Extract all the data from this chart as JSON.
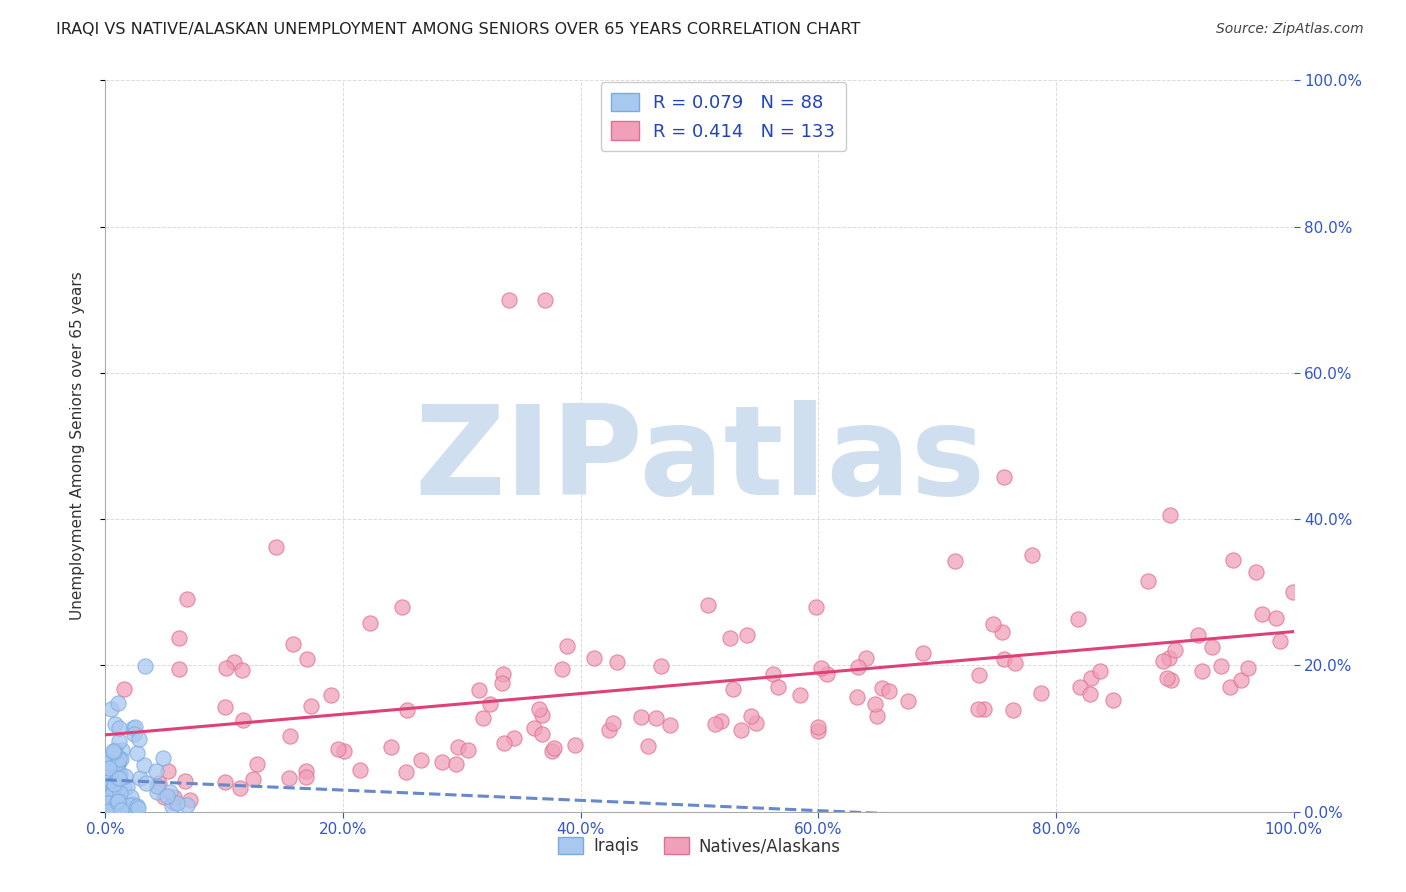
{
  "title": "IRAQI VS NATIVE/ALASKAN UNEMPLOYMENT AMONG SENIORS OVER 65 YEARS CORRELATION CHART",
  "source": "Source: ZipAtlas.com",
  "ylabel": "Unemployment Among Seniors over 65 years",
  "legend_label1": "Iraqis",
  "legend_label2": "Natives/Alaskans",
  "R1": "0.079",
  "N1": "88",
  "R2": "0.414",
  "N2": "133",
  "color_iraqis": "#a8c8f0",
  "color_iraqis_edge": "#7aaae0",
  "color_natives": "#f0a0b8",
  "color_natives_edge": "#e07090",
  "line_color_iraqis": "#6688cc",
  "line_color_natives": "#e0407a",
  "watermark_color": "#d0dff0",
  "background_color": "#ffffff",
  "grid_color": "#cccccc",
  "title_color": "#222222",
  "source_color": "#444444",
  "legend_text_color": "#2244bb",
  "tick_color": "#3355cc",
  "xlim": [
    0.0,
    1.0
  ],
  "ylim": [
    0.0,
    1.0
  ],
  "xticks": [
    0.0,
    0.2,
    0.4,
    0.6,
    0.8,
    1.0
  ],
  "yticks": [
    0.0,
    0.2,
    0.4,
    0.6,
    0.8,
    1.0
  ],
  "xtick_labels": [
    "0.0%",
    "20.0%",
    "40.0%",
    "60.0%",
    "80.0%",
    "100.0%"
  ],
  "ytick_labels": [
    "0.0%",
    "20.0%",
    "40.0%",
    "60.0%",
    "80.0%",
    "100.0%"
  ]
}
